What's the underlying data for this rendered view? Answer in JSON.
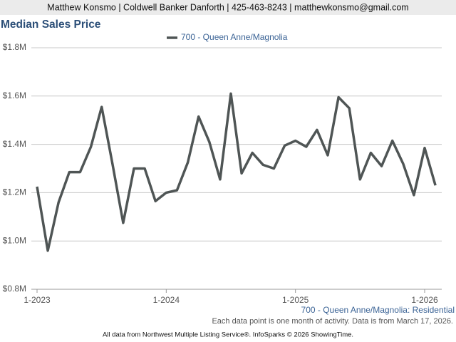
{
  "chart_data": {
    "type": "line",
    "header": "Matthew Konsmo | Coldwell Banker Danforth | 425-463-8243 | matthewkonsmo@gmail.com",
    "title": "Median Sales Price",
    "categories": [
      "1-2023",
      null,
      null,
      null,
      null,
      null,
      null,
      null,
      null,
      null,
      null,
      null,
      "1-2024",
      null,
      null,
      null,
      null,
      null,
      null,
      null,
      null,
      null,
      null,
      null,
      "1-2025",
      null,
      null,
      null,
      null,
      null,
      null,
      null,
      null,
      null,
      null,
      null,
      "1-2026",
      null
    ],
    "series": [
      {
        "name": "700 - Queen Anne/Magnolia",
        "color": "#4f5555",
        "values": [
          1225000,
          960000,
          1160000,
          1285000,
          1285000,
          1390000,
          1555000,
          1320000,
          1075000,
          1300000,
          1300000,
          1165000,
          1200000,
          1210000,
          1325000,
          1515000,
          1410000,
          1255000,
          1610000,
          1280000,
          1365000,
          1315000,
          1300000,
          1395000,
          1415000,
          1390000,
          1460000,
          1355000,
          1595000,
          1550000,
          1255000,
          1365000,
          1310000,
          1415000,
          1320000,
          1190000,
          1385000,
          1230000
        ]
      }
    ],
    "ylim": [
      800000,
      1800000
    ],
    "yticks": [
      {
        "value": 800000,
        "label": "$0.8M"
      },
      {
        "value": 1000000,
        "label": "$1.0M"
      },
      {
        "value": 1200000,
        "label": "$1.2M"
      },
      {
        "value": 1400000,
        "label": "$1.4M"
      },
      {
        "value": 1600000,
        "label": "$1.6M"
      },
      {
        "value": 1800000,
        "label": "$1.8M"
      }
    ],
    "grid": true,
    "legend": "top",
    "annotations": [
      "700 - Queen Anne/Magnolia: Residential",
      "Each data point is one month of activity. Data is from March 17, 2026.",
      "All data from Northwest Multiple Listing Service®. InfoSparks © 2026 ShowingTime."
    ]
  }
}
